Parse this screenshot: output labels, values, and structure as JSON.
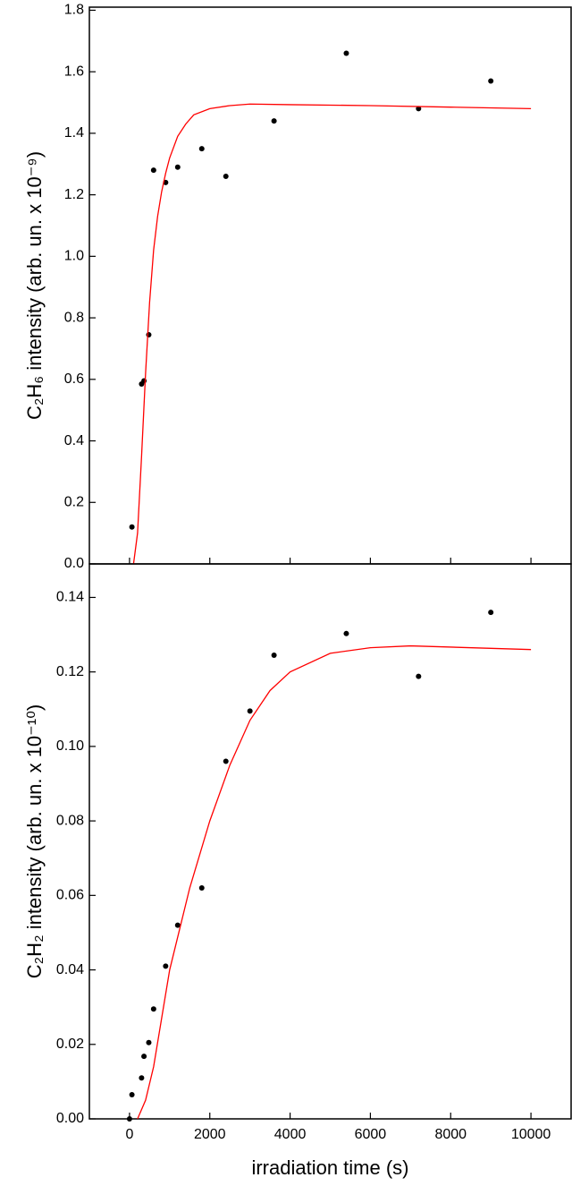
{
  "chart_data": [
    {
      "type": "scatter",
      "ylabel": "C₂H₆ intensity (arb. un. x 10⁻⁹)",
      "xlim": [
        -1000,
        11000
      ],
      "xticks": [
        0,
        2000,
        4000,
        6000,
        8000,
        10000
      ],
      "ylim": [
        0,
        1.81
      ],
      "yticks": [
        {
          "value": 0,
          "label": "0.0"
        },
        0.2,
        0.4,
        0.6,
        0.8,
        {
          "value": 1,
          "label": "1.0"
        },
        1.2,
        1.4,
        1.6,
        1.8
      ],
      "series": [
        {
          "color": "#000000",
          "mode": "markers",
          "x": [
            60,
            300,
            360,
            480,
            600,
            900,
            1200,
            1800,
            2400,
            3600,
            5400,
            7200,
            9000
          ],
          "values": [
            0.12,
            0.585,
            0.595,
            0.745,
            1.28,
            1.24,
            1.29,
            1.35,
            1.26,
            1.44,
            1.66,
            1.48,
            1.57
          ]
        },
        {
          "color": "#ff0000",
          "mode": "line",
          "x": [
            100,
            200,
            300,
            400,
            500,
            600,
            700,
            800,
            900,
            1000,
            1200,
            1400,
            1600,
            2000,
            2500,
            3000,
            4000,
            6000,
            8000,
            10000
          ],
          "values": [
            0,
            0.1,
            0.35,
            0.62,
            0.85,
            1.02,
            1.13,
            1.21,
            1.27,
            1.32,
            1.39,
            1.43,
            1.46,
            1.48,
            1.49,
            1.495,
            1.493,
            1.49,
            1.485,
            1.48
          ]
        }
      ]
    },
    {
      "type": "scatter",
      "ylabel": "C₂H₂ intensity (arb. un. x 10⁻¹⁰)",
      "xlabel": "irradiation time (s)",
      "xlim": [
        -1000,
        11000
      ],
      "xticks": [
        0,
        2000,
        4000,
        6000,
        8000,
        10000
      ],
      "ylim": [
        0,
        0.149
      ],
      "yticks": [
        {
          "value": 0,
          "label": "0.00"
        },
        0.02,
        0.04,
        0.06,
        0.08,
        {
          "value": 0.1,
          "label": "0.10"
        },
        0.12,
        0.14
      ],
      "series": [
        {
          "color": "#000000",
          "mode": "markers",
          "x": [
            0,
            60,
            300,
            360,
            480,
            600,
            900,
            1200,
            1800,
            2400,
            3000,
            3600,
            5400,
            7200,
            9000
          ],
          "values": [
            0,
            0.0065,
            0.011,
            0.0168,
            0.0205,
            0.0295,
            0.041,
            0.052,
            0.062,
            0.096,
            0.1095,
            0.1245,
            0.1303,
            0.1188,
            0.136
          ]
        },
        {
          "color": "#ff0000",
          "mode": "line",
          "x": [
            200,
            400,
            600,
            800,
            1000,
            1500,
            2000,
            2500,
            3000,
            3500,
            4000,
            5000,
            6000,
            7000,
            10000
          ],
          "values": [
            0,
            0.005,
            0.014,
            0.027,
            0.04,
            0.062,
            0.08,
            0.095,
            0.107,
            0.115,
            0.12,
            0.125,
            0.1265,
            0.127,
            0.126
          ]
        }
      ]
    }
  ]
}
